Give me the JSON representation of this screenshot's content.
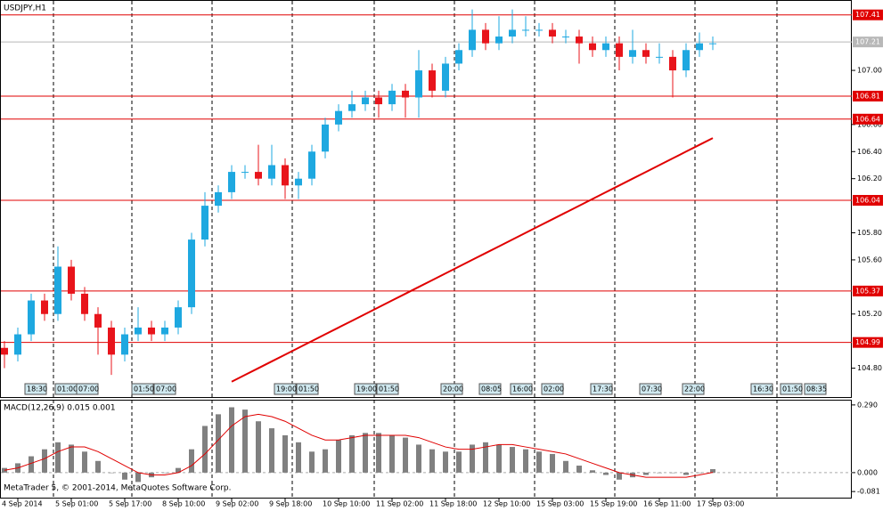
{
  "chart_data": {
    "type": "candlestick",
    "title": "USDJPY,H1",
    "watermark": "MetaTrader 5, © 2001-2014, MetaQuotes Software Corp.",
    "categories": [
      null,
      "4 Sep 2014",
      null,
      null,
      null,
      "5 Sep 01:00",
      null,
      null,
      null,
      "5 Sep 17:00",
      null,
      null,
      null,
      "8 Sep 10:00",
      null,
      null,
      null,
      "9 Sep 02:00",
      null,
      null,
      null,
      "9 Sep 18:00",
      null,
      null,
      null,
      "10 Sep 10:00",
      null,
      null,
      null,
      "11 Sep 02:00",
      null,
      null,
      null,
      "11 Sep 18:00",
      null,
      null,
      null,
      "12 Sep 10:00",
      null,
      null,
      null,
      "15 Sep 03:00",
      null,
      null,
      null,
      "15 Sep 19:00",
      null,
      null,
      null,
      "16 Sep 11:00",
      null,
      null,
      null,
      "17 Sep 03:00"
    ],
    "open": [
      104.95,
      104.9,
      105.05,
      105.3,
      105.2,
      105.55,
      105.35,
      105.2,
      105.1,
      104.9,
      105.05,
      105.1,
      105.05,
      105.1,
      105.25,
      105.75,
      106.0,
      106.1,
      106.25,
      106.25,
      106.2,
      106.3,
      106.15,
      106.2,
      106.4,
      106.6,
      106.7,
      106.75,
      106.8,
      106.75,
      106.85,
      106.8,
      107.0,
      106.85,
      107.05,
      107.15,
      107.3,
      107.2,
      107.25,
      107.3,
      107.3,
      107.3,
      107.25,
      107.25,
      107.2,
      107.15,
      107.2,
      107.1,
      107.15,
      107.1,
      107.1,
      107.0,
      107.15,
      107.2
    ],
    "high": [
      105.0,
      105.1,
      105.35,
      105.35,
      105.7,
      105.6,
      105.4,
      105.25,
      105.15,
      105.1,
      105.25,
      105.15,
      105.15,
      105.3,
      105.8,
      106.1,
      106.15,
      106.3,
      106.3,
      106.45,
      106.45,
      106.35,
      106.25,
      106.45,
      106.65,
      106.75,
      106.85,
      106.85,
      106.85,
      106.9,
      106.9,
      107.15,
      107.05,
      107.1,
      107.2,
      107.45,
      107.35,
      107.4,
      107.45,
      107.4,
      107.35,
      107.35,
      107.3,
      107.3,
      107.25,
      107.25,
      107.25,
      107.3,
      107.2,
      107.2,
      107.15,
      107.2,
      107.28,
      107.25
    ],
    "low": [
      104.8,
      104.85,
      105.0,
      105.15,
      105.15,
      105.3,
      105.15,
      104.9,
      104.75,
      104.85,
      105.0,
      105.0,
      105.0,
      105.05,
      105.2,
      105.7,
      105.95,
      106.05,
      106.2,
      106.15,
      106.15,
      106.05,
      106.05,
      106.15,
      106.35,
      106.55,
      106.65,
      106.7,
      106.65,
      106.7,
      106.65,
      106.65,
      106.8,
      106.8,
      107.0,
      107.1,
      107.15,
      107.15,
      107.2,
      107.25,
      107.25,
      107.2,
      107.2,
      107.05,
      107.1,
      107.1,
      107.0,
      107.05,
      107.05,
      107.05,
      106.8,
      106.95,
      107.1,
      107.15
    ],
    "close": [
      104.9,
      105.05,
      105.3,
      105.2,
      105.55,
      105.35,
      105.2,
      105.1,
      104.9,
      105.05,
      105.1,
      105.05,
      105.1,
      105.25,
      105.75,
      106.0,
      106.1,
      106.25,
      106.25,
      106.2,
      106.3,
      106.15,
      106.2,
      106.4,
      106.6,
      106.7,
      106.75,
      106.8,
      106.75,
      106.85,
      106.8,
      107.0,
      106.85,
      107.05,
      107.15,
      107.3,
      107.2,
      107.25,
      107.3,
      107.3,
      107.3,
      107.25,
      107.25,
      107.2,
      107.15,
      107.2,
      107.1,
      107.15,
      107.1,
      107.1,
      107.0,
      107.15,
      107.2,
      107.2
    ],
    "up_color": "#1ea8e0",
    "down_color": "#e8141b",
    "ylim": [
      104.58,
      107.52
    ],
    "yticks": [
      {
        "value": 107.0,
        "label": "107.00"
      },
      {
        "value": 106.6,
        "label": "106.60"
      },
      {
        "value": 106.4,
        "label": "106.40"
      },
      {
        "value": 106.2,
        "label": "106.20"
      },
      {
        "value": 105.8,
        "label": "105.80"
      },
      {
        "value": 105.6,
        "label": "105.60"
      },
      {
        "value": 105.2,
        "label": "105.20"
      },
      {
        "value": 104.8,
        "label": "104.80"
      }
    ],
    "levels": [
      107.41,
      106.81,
      106.64,
      106.04,
      105.37,
      104.99
    ],
    "level_color": "#e00000",
    "current_price": 107.21,
    "current_price_color": "#b8b8b8",
    "ma": {
      "color": "#e00000",
      "values": [
        null,
        null,
        null,
        null,
        null,
        null,
        null,
        null,
        null,
        null,
        null,
        null,
        null,
        null,
        null,
        null,
        null,
        104.7,
        104.75,
        104.8,
        104.85,
        104.9,
        104.95,
        105.0,
        105.05,
        105.1,
        105.15,
        105.2,
        105.25,
        105.3,
        105.35,
        105.4,
        105.45,
        105.5,
        105.55,
        105.6,
        105.65,
        105.7,
        105.75,
        105.8,
        105.85,
        105.9,
        105.95,
        106.0,
        106.05,
        106.1,
        106.15,
        106.2,
        106.25,
        106.3,
        106.35,
        106.4,
        106.45,
        106.5
      ]
    },
    "events": [
      "18:30",
      "01:00",
      "07:00",
      "01:50",
      "07:00",
      "19:00",
      "01:50",
      "19:00",
      "01:50",
      "20:00",
      "08:05",
      "16:00",
      "02:00",
      "17:30",
      "07:30",
      "22:00",
      "16:30",
      "01:50",
      "08:35"
    ],
    "indicator": {
      "type": "macd",
      "title": "MACD(12,26,9) 0.015 0.001",
      "histogram": [
        0.02,
        0.04,
        0.07,
        0.1,
        0.13,
        0.12,
        0.09,
        0.05,
        0.0,
        -0.03,
        -0.04,
        -0.02,
        0.0,
        0.02,
        0.1,
        0.2,
        0.25,
        0.28,
        0.27,
        0.22,
        0.19,
        0.16,
        0.13,
        0.09,
        0.1,
        0.14,
        0.16,
        0.17,
        0.17,
        0.16,
        0.15,
        0.12,
        0.1,
        0.09,
        0.09,
        0.12,
        0.13,
        0.12,
        0.11,
        0.1,
        0.09,
        0.08,
        0.05,
        0.03,
        0.01,
        -0.01,
        -0.03,
        -0.02,
        -0.01,
        0.0,
        0.0,
        -0.01,
        0.0,
        0.015
      ],
      "signal": [
        0.01,
        0.02,
        0.04,
        0.06,
        0.09,
        0.11,
        0.11,
        0.09,
        0.06,
        0.03,
        0.0,
        -0.01,
        -0.01,
        0.0,
        0.03,
        0.08,
        0.14,
        0.2,
        0.24,
        0.25,
        0.24,
        0.22,
        0.19,
        0.16,
        0.14,
        0.14,
        0.15,
        0.16,
        0.16,
        0.16,
        0.16,
        0.15,
        0.13,
        0.11,
        0.1,
        0.1,
        0.11,
        0.12,
        0.12,
        0.11,
        0.1,
        0.09,
        0.08,
        0.06,
        0.04,
        0.02,
        0.0,
        -0.01,
        -0.02,
        -0.02,
        -0.02,
        -0.02,
        -0.01,
        0.001
      ],
      "histogram_color": "#808080",
      "signal_color": "#e00000",
      "ylim": [
        -0.111,
        0.32
      ],
      "yticks": [
        {
          "value": 0.29,
          "label": "0.290"
        },
        {
          "value": 0,
          "label": "0.000"
        },
        -0.081
      ]
    }
  }
}
